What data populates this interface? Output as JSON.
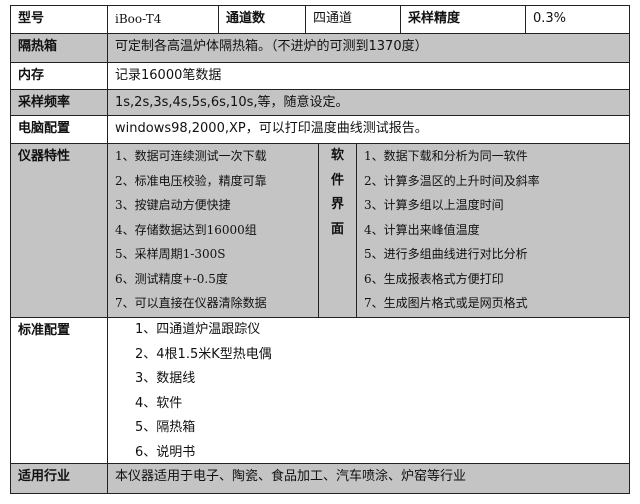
{
  "header": {
    "model_label": "型号",
    "model_value": "iBoo-T4",
    "channels_label": "通道数",
    "channels_value": "四通道",
    "precision_label": "采样精度",
    "precision_value": "0.3%"
  },
  "rows": {
    "insulation": {
      "label": "隔热箱",
      "value": "可定制各高温炉体隔热箱。（不进炉的可测到1370度）"
    },
    "memory": {
      "label": "内存",
      "value": "记录16000笔数据"
    },
    "sampling": {
      "label": "采样频率",
      "value": "1s,2s,3s,4s,5s,6s,10s,等，随意设定。"
    },
    "pc": {
      "label": "电脑配置",
      "value": "windows98,2000,XP，可以打印温度曲线测试报告。"
    },
    "features": {
      "label": "仪器特性",
      "items": [
        "1、数据可连续测试一次下载",
        "2、标准电压校验，精度可靠",
        "3、按键启动方便快捷",
        "4、存储数据达到16000组",
        "5、采样周期1-300S",
        "6、测试精度+-0.5度",
        "7、可以直接在仪器清除数据"
      ],
      "software_label": [
        "软",
        "件",
        "界",
        "面"
      ],
      "software_items": [
        "1、数据下载和分析为同一软件",
        "2、计算多温区的上升时间及斜率",
        "3、计算多组以上温度时间",
        "4、计算出来峰值温度",
        "5、进行多组曲线进行对比分析",
        "6、生成报表格式方便打印",
        "7、生成图片格式或是网页格式"
      ]
    },
    "standard": {
      "label": "标准配置",
      "items": [
        "1、四通道炉温跟踪仪",
        "2、4根1.5米K型热电偶",
        "3、数据线",
        "4、软件",
        "5、隔热箱",
        "6、说明书"
      ]
    },
    "industry": {
      "label": "适用行业",
      "value": "本仪器适用于电子、陶瓷、食品加工、汽车喷涂、炉窑等行业"
    }
  },
  "colors": {
    "gray_row": "#c4c4c4",
    "border": "#222222"
  }
}
